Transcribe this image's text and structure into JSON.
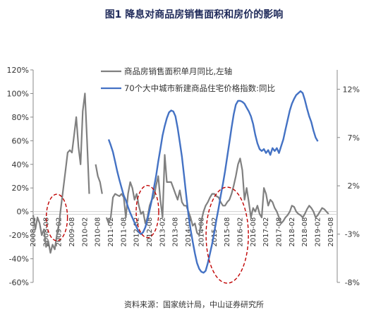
{
  "figure_title": "图1  降息对商品房销售面积和房价的影响",
  "source_note": "资料来源：国家统计局，中山证券研究所",
  "colors": {
    "sales": "#808080",
    "price": "#4472c4",
    "circle": "#c00000"
  },
  "chart_data": {
    "type": "line",
    "title": "图1  降息对商品房销售面积和房价的影响",
    "x_tick_labels": [
      "2008-02",
      "2008-08",
      "2009-02",
      "2009-08",
      "2010-02",
      "2010-08",
      "2011-02",
      "2011-08",
      "2012-02",
      "2012-08",
      "2013-02",
      "2013-08",
      "2014-02",
      "2014-08",
      "2015-02",
      "2015-08",
      "2016-02",
      "2016-08",
      "2017-02",
      "2017-08",
      "2018-02",
      "2018-08",
      "2019-02",
      "2019-08"
    ],
    "y_left": {
      "range": [
        -60,
        120
      ],
      "ticks": [
        "-60%",
        "-40%",
        "-20%",
        "0%",
        "20%",
        "40%",
        "60%",
        "80%",
        "100%",
        "120%"
      ]
    },
    "y_right": {
      "range": [
        -8,
        14
      ],
      "ticks": [
        "-8%",
        "-3%",
        "2%",
        "7%",
        "12%"
      ]
    },
    "legend": [
      "商品房销售面积单月同比,左轴",
      "70个大中城市新建商品住宅价格指数:同比"
    ],
    "series": [
      {
        "name": "商品房销售面积单月同比,左轴",
        "axis": "left",
        "start": "2008-02",
        "values": [
          -3,
          -15,
          -5,
          -10,
          -20,
          -15,
          -30,
          -25,
          -35,
          -28,
          -32,
          -20,
          -10,
          5,
          20,
          35,
          50,
          52,
          50,
          65,
          80,
          55,
          40,
          85,
          100,
          60,
          15,
          null,
          null,
          40,
          30,
          25,
          15,
          null,
          -5,
          -10,
          -5,
          12,
          15,
          14,
          13,
          15,
          12,
          -5,
          15,
          25,
          20,
          10,
          15,
          5,
          -2,
          0,
          -10,
          -5,
          5,
          10,
          12,
          22,
          30,
          10,
          -5,
          48,
          25,
          25,
          25,
          20,
          15,
          10,
          18,
          8,
          5,
          5,
          0,
          -5,
          -12,
          -10,
          -18,
          -20,
          -8,
          0,
          5,
          8,
          12,
          15,
          15,
          13,
          12,
          8,
          5,
          5,
          8,
          10,
          15,
          22,
          30,
          40,
          45,
          35,
          10,
          20,
          8,
          -5,
          3,
          0,
          5,
          -2,
          -5,
          20,
          15,
          5,
          10,
          8,
          3,
          0,
          -5,
          -10,
          -8,
          -5,
          -3,
          0,
          5,
          4,
          0,
          -2,
          -3,
          -5,
          -2,
          2,
          5,
          3,
          0,
          -5,
          -3,
          0,
          3,
          2,
          0,
          -2
        ]
      },
      {
        "name": "70个大中城市新建商品住宅价格指数:同比",
        "axis": "right",
        "start": "2011-01",
        "values": [
          6.8,
          6.2,
          5.5,
          4.5,
          3.5,
          2.6,
          1.8,
          1.0,
          0.5,
          -0.2,
          -0.8,
          -1.3,
          -1.8,
          -2.3,
          -2.8,
          -3.0,
          -2.8,
          -2.3,
          -1.5,
          -0.5,
          0.5,
          1.8,
          3.0,
          4.5,
          5.8,
          7.2,
          8.2,
          9.0,
          9.6,
          9.8,
          9.7,
          9.2,
          8.0,
          6.5,
          5.0,
          3.0,
          1.0,
          -1.0,
          -2.5,
          -3.8,
          -5.0,
          -6.0,
          -6.6,
          -6.9,
          -7.0,
          -6.8,
          -6.0,
          -5.0,
          -4.0,
          -2.8,
          -1.5,
          -0.3,
          1.0,
          2.2,
          3.5,
          5.0,
          6.5,
          8.0,
          9.4,
          10.4,
          10.8,
          10.8,
          10.7,
          10.5,
          10.1,
          9.7,
          9.2,
          8.4,
          7.3,
          6.4,
          5.8,
          5.6,
          5.8,
          5.4,
          5.7,
          5.2,
          5.9,
          5.6,
          5.9,
          5.4,
          6.1,
          6.8,
          7.8,
          8.8,
          9.8,
          10.5,
          11.0,
          11.4,
          11.6,
          11.8,
          11.6,
          10.9,
          10.0,
          9.2,
          8.6,
          7.7,
          7.0,
          6.6
        ]
      }
    ],
    "grid": false
  }
}
